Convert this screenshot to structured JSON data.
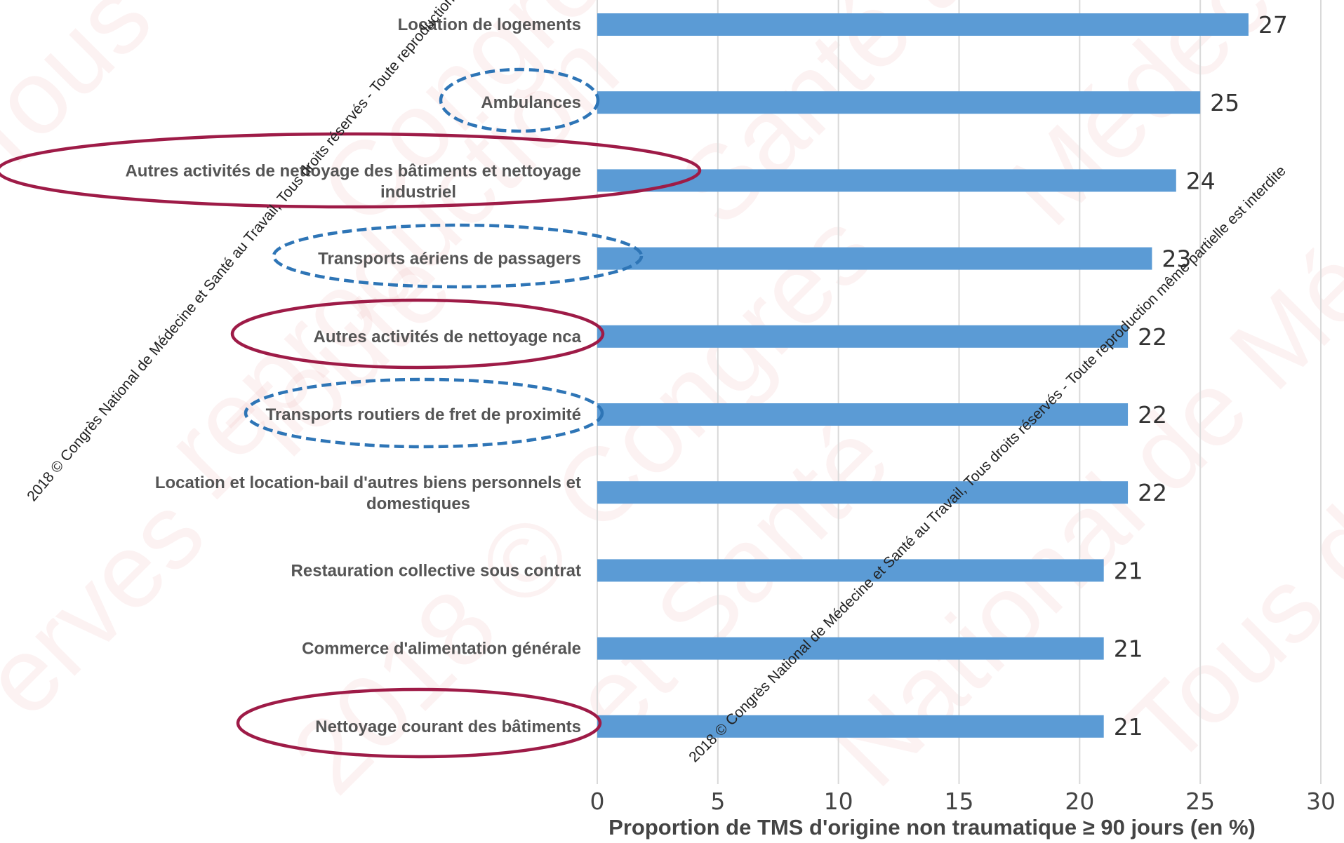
{
  "chart_data": {
    "type": "bar",
    "orientation": "horizontal",
    "categories": [
      "Location de logements",
      "Ambulances",
      "Autres activités de nettoyage des bâtiments et nettoyage industriel",
      "Transports aériens de passagers",
      "Autres activités de nettoyage nca",
      "Transports routiers de fret de proximité",
      "Location et location-bail d'autres biens personnels et domestiques",
      "Restauration collective sous contrat",
      "Commerce d'alimentation générale",
      "Nettoyage courant des bâtiments"
    ],
    "values": [
      27,
      25,
      24,
      23,
      22,
      22,
      22,
      21,
      21,
      21
    ],
    "xlabel": "Proportion de TMS d'origine non traumatique ≥ 90 jours (en %)",
    "xlim": [
      0,
      30
    ],
    "xticks": [
      0,
      5,
      10,
      15,
      20,
      25,
      30
    ],
    "grid": "vertical",
    "bar_color": "#5b9bd5",
    "highlights": {
      "cleaning_outline_color": "#9e1b47",
      "cleaning_outline_style": "solid",
      "cleaning_items": [
        2,
        4,
        9
      ],
      "transport_outline_color": "#2e75b6",
      "transport_outline_style": "dashed",
      "transport_items": [
        1,
        3,
        5
      ]
    }
  },
  "watermark": {
    "diagonal_text": "2018 © Congrès National de Médecine et Santé au Travail, Tous droits réservés - Toute reproduction même partielle est interdite",
    "large_fragments": [
      "Tous droits",
      "Congrès Natio",
      "Santé au Travail,",
      "Médec",
      "erves - Toute",
      "2018 © Congrès",
      "et Santé",
      "National de Méde",
      "Tous dro",
      "reproduction"
    ]
  }
}
